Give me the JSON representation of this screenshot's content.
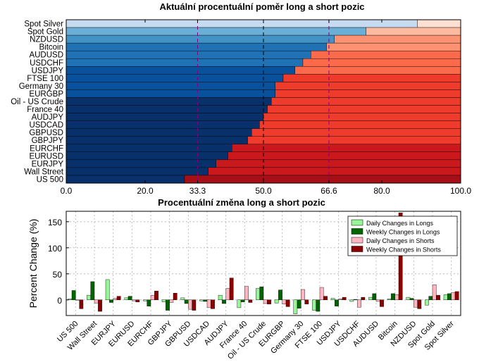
{
  "colors": {
    "long_shades": [
      "#08306b",
      "#08519c",
      "#2171b5",
      "#4292c6",
      "#6baed6",
      "#9ecae1",
      "#c6dbef"
    ],
    "short_shades": [
      "#fee0d2",
      "#fcbba1",
      "#fc9272",
      "#fb6a4a",
      "#ef3b2c",
      "#cb181d",
      "#a50f15"
    ],
    "ref_line": "#800080",
    "grid": "#b0b0b0",
    "daily_long": "#98f598",
    "weekly_long": "#006400",
    "daily_short": "#ffb6c1",
    "weekly_short": "#8b0000"
  },
  "chart_data": [
    {
      "type": "bar",
      "orientation": "horizontal",
      "stacked": true,
      "title": "Aktuální procentuální poměr long a short pozic",
      "categories": [
        "Spot Silver",
        "Spot Gold",
        "NZDUSD",
        "Bitcoin",
        "AUDUSD",
        "USDCHF",
        "USDJPY",
        "FTSE 100",
        "Germany 30",
        "EURGBP",
        "Oil - US Crude",
        "France 40",
        "AUDJPY",
        "USDCAD",
        "GBPUSD",
        "GBPJPY",
        "EURCHF",
        "EURUSD",
        "EURJPY",
        "Wall Street",
        "US 500"
      ],
      "series": [
        {
          "values": [
            89,
            76,
            68,
            66,
            62,
            60,
            58,
            55,
            53,
            53,
            52,
            51,
            50,
            49,
            47,
            46,
            42,
            41,
            38,
            36,
            30
          ]
        },
        {
          "values": [
            11,
            24,
            32,
            34,
            38,
            40,
            42,
            45,
            47,
            47,
            48,
            49,
            50,
            51,
            53,
            54,
            58,
            59,
            62,
            64,
            70
          ]
        }
      ],
      "xlim": [
        0,
        100
      ],
      "xticks": [
        "0.0",
        "20.0",
        "33.3",
        "50.0",
        "66.6",
        "80.0",
        "100.0"
      ],
      "reference_lines": [
        33.3,
        50.0,
        66.6
      ],
      "grid": true
    },
    {
      "type": "bar",
      "title": "Procentuální změna long a short pozic",
      "ylabel": "Percent Change (%)",
      "ylim": [
        -30,
        170
      ],
      "yticks": [
        "0",
        "50",
        "100",
        "150"
      ],
      "categories": [
        "US 500",
        "Wall Street",
        "EURJPY",
        "EURUSD",
        "EURCHF",
        "GBPJPY",
        "GBPUSD",
        "USDCAD",
        "AUDJPY",
        "France 40",
        "Oil - US Crude",
        "EURGBP",
        "Germany 30",
        "FTSE 100",
        "USDJPY",
        "USDCHF",
        "AUDUSD",
        "Bitcoin",
        "NZDUSD",
        "Spot Gold",
        "Spot Silver"
      ],
      "series": [
        {
          "name": "Daily Changes in Longs",
          "values": [
            2,
            9,
            39,
            4,
            -2,
            -4,
            4,
            -2,
            9,
            -15,
            22,
            -6,
            -27,
            -20,
            3,
            -3,
            5,
            2,
            5,
            -10,
            10
          ]
        },
        {
          "name": "Weekly Changes in Longs",
          "values": [
            18,
            35,
            -5,
            7,
            -12,
            -20,
            -7,
            -3,
            -7,
            -4,
            25,
            19,
            -16,
            -22,
            -12,
            1,
            12,
            12,
            3,
            7,
            12
          ]
        },
        {
          "name": "Daily Changes in Shorts",
          "values": [
            0,
            -6,
            3,
            -2,
            9,
            -5,
            -18,
            -15,
            22,
            26,
            -7,
            -8,
            20,
            24,
            2,
            -14,
            -3,
            10,
            -14,
            29,
            14
          ]
        },
        {
          "name": "Weekly Changes in Shorts",
          "values": [
            -17,
            -22,
            7,
            -4,
            17,
            13,
            -20,
            -17,
            42,
            -5,
            -8,
            -13,
            -8,
            7,
            5,
            5,
            -13,
            167,
            -17,
            9,
            16
          ]
        }
      ],
      "legend_position": "top-right",
      "grid": true
    }
  ]
}
